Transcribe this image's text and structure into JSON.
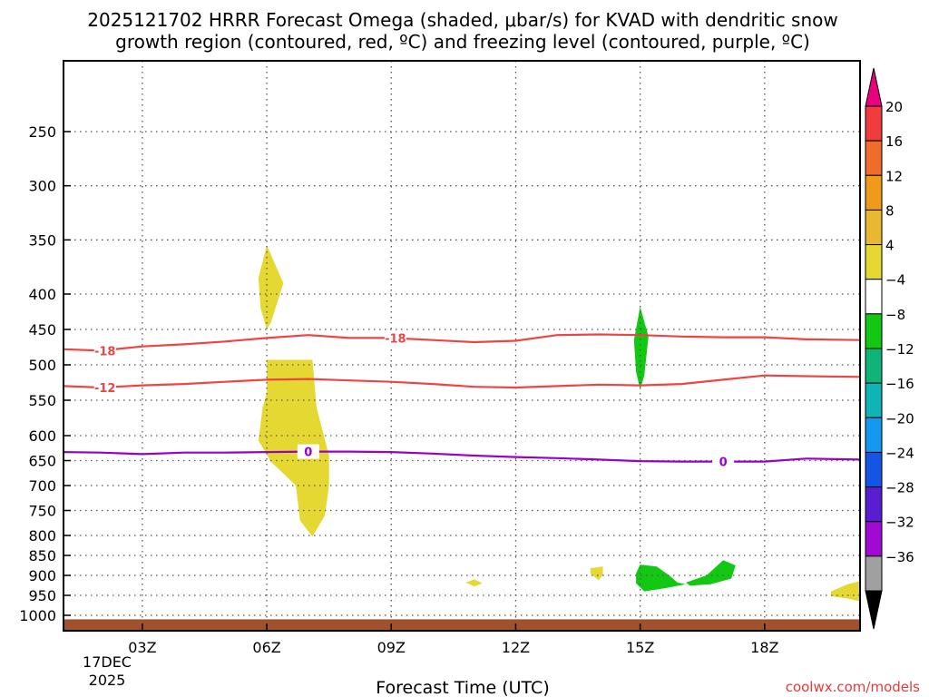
{
  "chart_data": {
    "type": "heatmap",
    "title_lines": [
      "2025121702 HRRR Forecast Omega (shaded, μbar/s) for KVAD with dendritic snow",
      "growth region (contoured, red, ºC) and freezing level (contoured, purple, ºC)"
    ],
    "xlabel": "Forecast Time (UTC)",
    "credit": "coolwx.com/models",
    "x_unit": "hours since 2025-12-17 00Z",
    "xlim": [
      1.1,
      20.3
    ],
    "x_ticks": [
      {
        "x": 3,
        "label": "03Z"
      },
      {
        "x": 6,
        "label": "06Z"
      },
      {
        "x": 9,
        "label": "09Z"
      },
      {
        "x": 12,
        "label": "12Z"
      },
      {
        "x": 15,
        "label": "15Z"
      },
      {
        "x": 18,
        "label": "18Z"
      }
    ],
    "date_label": [
      "17DEC",
      "2025"
    ],
    "y_unit": "hPa",
    "ylim": [
      1030,
      200
    ],
    "y_ticks": [
      250,
      300,
      350,
      400,
      450,
      500,
      550,
      600,
      650,
      700,
      750,
      800,
      850,
      900,
      950,
      1000
    ],
    "grid": true,
    "colorbar": {
      "labels": [
        "20",
        "16",
        "12",
        "8",
        "4",
        "-4",
        "-8",
        "-12",
        "-16",
        "-20",
        "-24",
        "-28",
        "-32",
        "-36"
      ],
      "top_color": "#e8007f",
      "bottom_color": "#000000",
      "segments": [
        "#f03c3c",
        "#f06c2c",
        "#f09a1c",
        "#e8b832",
        "#e6d832",
        "#ffffff",
        "#12c812",
        "#10b478",
        "#10b4b4",
        "#1498f0",
        "#1455e6",
        "#5a1ed2",
        "#a00ad2",
        "#a0a0a0"
      ]
    },
    "contours": [
      {
        "label": "-18",
        "color": "#ee4444",
        "points": [
          [
            1.1,
            478
          ],
          [
            2,
            480
          ],
          [
            3,
            474
          ],
          [
            4,
            471
          ],
          [
            5,
            467
          ],
          [
            6,
            462
          ],
          [
            7,
            458
          ],
          [
            8,
            462
          ],
          [
            9,
            462
          ],
          [
            10,
            465
          ],
          [
            11,
            468
          ],
          [
            12,
            466
          ],
          [
            13,
            458
          ],
          [
            14,
            457
          ],
          [
            15,
            458
          ],
          [
            16,
            460
          ],
          [
            17,
            461
          ],
          [
            18,
            461
          ],
          [
            19,
            464
          ],
          [
            20.3,
            465
          ]
        ],
        "label_at": [
          [
            2.1,
            480
          ],
          [
            9.1,
            462
          ]
        ]
      },
      {
        "label": "-12",
        "color": "#ee4444",
        "points": [
          [
            1.1,
            530
          ],
          [
            2,
            532
          ],
          [
            3,
            529
          ],
          [
            4,
            527
          ],
          [
            5,
            524
          ],
          [
            6,
            521
          ],
          [
            7,
            520
          ],
          [
            8,
            522
          ],
          [
            9,
            524
          ],
          [
            10,
            527
          ],
          [
            11,
            531
          ],
          [
            12,
            532
          ],
          [
            13,
            530
          ],
          [
            14,
            528
          ],
          [
            15,
            529
          ],
          [
            16,
            527
          ],
          [
            17,
            521
          ],
          [
            18,
            515
          ],
          [
            19,
            516
          ],
          [
            20.3,
            517
          ]
        ],
        "label_at": [
          [
            2.1,
            532
          ]
        ]
      },
      {
        "label": "0",
        "color": "#9a00cc",
        "points": [
          [
            1.1,
            633
          ],
          [
            2,
            634
          ],
          [
            3,
            637
          ],
          [
            4,
            634
          ],
          [
            5,
            634
          ],
          [
            6,
            633
          ],
          [
            7,
            632
          ],
          [
            8,
            632
          ],
          [
            9,
            633
          ],
          [
            10,
            636
          ],
          [
            11,
            640
          ],
          [
            12,
            643
          ],
          [
            13,
            645
          ],
          [
            14,
            648
          ],
          [
            15,
            651
          ],
          [
            16,
            652
          ],
          [
            17,
            652
          ],
          [
            18,
            652
          ],
          [
            19,
            646
          ],
          [
            20.3,
            648
          ]
        ],
        "label_at": [
          [
            7,
            632
          ],
          [
            17,
            652
          ]
        ]
      }
    ],
    "shaded_regions": [
      {
        "value_class": "4 to 8",
        "color": "#e6d832",
        "points": [
          [
            6,
            355
          ],
          [
            6.4,
            390
          ],
          [
            6.1,
            440
          ],
          [
            6,
            450
          ],
          [
            5.85,
            420
          ],
          [
            5.8,
            385
          ]
        ]
      },
      {
        "value_class": "4 to 8",
        "color": "#e6d832",
        "points": [
          [
            6,
            493
          ],
          [
            7.1,
            493
          ],
          [
            7.2,
            560
          ],
          [
            7.5,
            640
          ],
          [
            7.5,
            700
          ],
          [
            7.4,
            760
          ],
          [
            7.1,
            803
          ],
          [
            6.8,
            770
          ],
          [
            6.7,
            700
          ],
          [
            6.1,
            652
          ],
          [
            5.8,
            610
          ],
          [
            5.9,
            560
          ],
          [
            6,
            540
          ]
        ]
      },
      {
        "value_class": "4 to 8",
        "color": "#e6d832",
        "points": [
          [
            10.8,
            918
          ],
          [
            11,
            910
          ],
          [
            11.2,
            920
          ],
          [
            11,
            928
          ]
        ]
      },
      {
        "value_class": "4 to 8",
        "color": "#e6d832",
        "points": [
          [
            13.8,
            882
          ],
          [
            14.1,
            878
          ],
          [
            14.1,
            898
          ],
          [
            14,
            912
          ],
          [
            13.8,
            895
          ]
        ]
      },
      {
        "value_class": "4 to 8",
        "color": "#e6d832",
        "points": [
          [
            19.6,
            940
          ],
          [
            20,
            922
          ],
          [
            20.3,
            914
          ],
          [
            20.3,
            965
          ],
          [
            20,
            958
          ],
          [
            19.6,
            952
          ]
        ]
      },
      {
        "value_class": "-8 to -4",
        "color": "#12c812",
        "points": [
          [
            15,
            418
          ],
          [
            15.2,
            460
          ],
          [
            15.1,
            515
          ],
          [
            15,
            535
          ],
          [
            14.9,
            510
          ],
          [
            14.85,
            465
          ]
        ]
      },
      {
        "value_class": "-8 to -4",
        "color": "#12c812",
        "points": [
          [
            15,
            873
          ],
          [
            15.4,
            878
          ],
          [
            15.7,
            900
          ],
          [
            15.9,
            918
          ],
          [
            16.1,
            922
          ],
          [
            15.6,
            932
          ],
          [
            15.1,
            940
          ],
          [
            14.9,
            920
          ],
          [
            14.9,
            895
          ]
        ]
      },
      {
        "value_class": "-8 to -4",
        "color": "#12c812",
        "points": [
          [
            16.1,
            918
          ],
          [
            16.6,
            900
          ],
          [
            17,
            862
          ],
          [
            17.3,
            875
          ],
          [
            17.2,
            908
          ],
          [
            16.7,
            922
          ],
          [
            16.2,
            926
          ]
        ]
      }
    ],
    "terrain": {
      "color": "#a0522d",
      "surface_hPa": 1010
    }
  }
}
